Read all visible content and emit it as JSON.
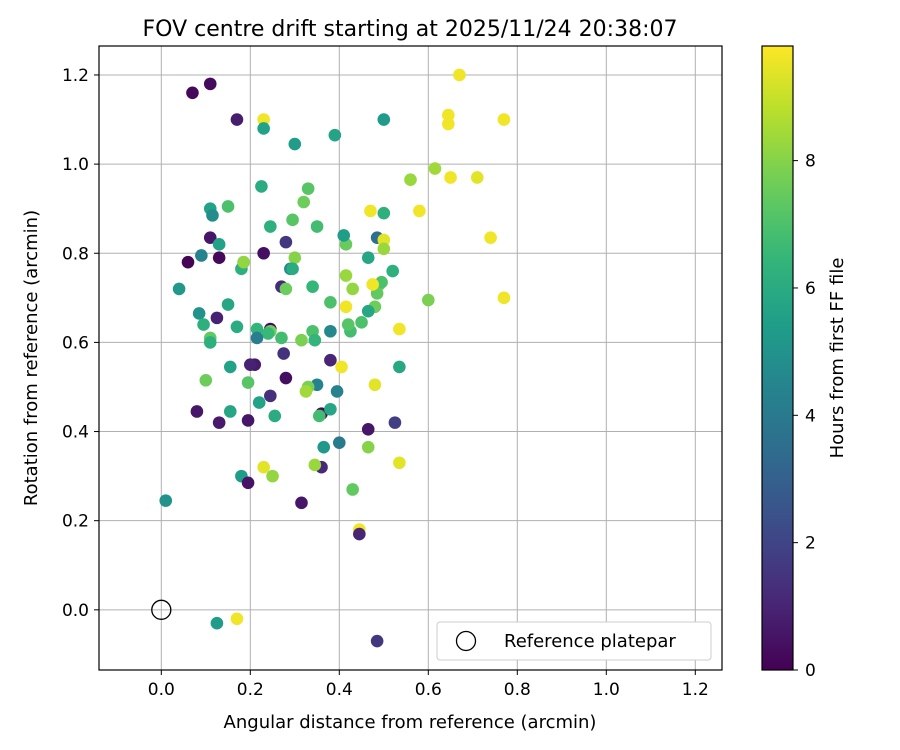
{
  "chart_data": {
    "type": "scatter",
    "title": "FOV centre drift starting at 2025/11/24 20:38:07",
    "xlabel": "Angular distance from reference (arcmin)",
    "ylabel": "Rotation from reference (arcmin)",
    "xlim": [
      -0.14,
      1.26
    ],
    "ylim": [
      -0.135,
      1.265
    ],
    "xticks": [
      "0.0",
      "0.2",
      "0.4",
      "0.6",
      "0.8",
      "1.0",
      "1.2"
    ],
    "yticks": [
      "0.0",
      "0.2",
      "0.4",
      "0.6",
      "0.8",
      "1.0",
      "1.2"
    ],
    "xtick_values": [
      0.0,
      0.2,
      0.4,
      0.6,
      0.8,
      1.0,
      1.2
    ],
    "ytick_values": [
      0.0,
      0.2,
      0.4,
      0.6,
      0.8,
      1.0,
      1.2
    ],
    "grid": true,
    "colorbar": {
      "label": "Hours from first FF file",
      "min": 0,
      "max": 9.8,
      "ticks": [
        "0",
        "2",
        "4",
        "6",
        "8"
      ],
      "tick_values": [
        0,
        2,
        4,
        6,
        8
      ]
    },
    "legend": {
      "label": "Reference platepar",
      "position": "lower-right"
    },
    "reference_point": {
      "x": 0.0,
      "y": 0.0
    },
    "points": [
      {
        "x": 0.07,
        "y": 1.16,
        "h": 0.2
      },
      {
        "x": 0.11,
        "y": 1.18,
        "h": 0.3
      },
      {
        "x": 0.17,
        "y": 1.1,
        "h": 0.8
      },
      {
        "x": 0.23,
        "y": 1.1,
        "h": 9.6
      },
      {
        "x": 0.23,
        "y": 1.08,
        "h": 5.6
      },
      {
        "x": 0.3,
        "y": 1.045,
        "h": 5.4
      },
      {
        "x": 0.39,
        "y": 1.065,
        "h": 5.7
      },
      {
        "x": 0.5,
        "y": 1.1,
        "h": 5.3
      },
      {
        "x": 0.67,
        "y": 1.2,
        "h": 9.6
      },
      {
        "x": 0.645,
        "y": 1.11,
        "h": 9.6
      },
      {
        "x": 0.645,
        "y": 1.09,
        "h": 9.6
      },
      {
        "x": 0.77,
        "y": 1.1,
        "h": 9.6
      },
      {
        "x": 0.56,
        "y": 0.965,
        "h": 8.3
      },
      {
        "x": 0.615,
        "y": 0.99,
        "h": 8.4
      },
      {
        "x": 0.65,
        "y": 0.97,
        "h": 9.6
      },
      {
        "x": 0.71,
        "y": 0.97,
        "h": 9.4
      },
      {
        "x": 0.74,
        "y": 0.835,
        "h": 9.6
      },
      {
        "x": 0.77,
        "y": 0.7,
        "h": 9.6
      },
      {
        "x": 0.58,
        "y": 0.895,
        "h": 9.6
      },
      {
        "x": 0.47,
        "y": 0.895,
        "h": 9.6
      },
      {
        "x": 0.5,
        "y": 0.89,
        "h": 6.2
      },
      {
        "x": 0.485,
        "y": 0.835,
        "h": 3.5
      },
      {
        "x": 0.5,
        "y": 0.83,
        "h": 9.4
      },
      {
        "x": 0.5,
        "y": 0.81,
        "h": 8.3
      },
      {
        "x": 0.52,
        "y": 0.76,
        "h": 6.2
      },
      {
        "x": 0.465,
        "y": 0.79,
        "h": 5.8
      },
      {
        "x": 0.49,
        "y": 0.73,
        "h": 7.6
      },
      {
        "x": 0.495,
        "y": 0.735,
        "h": 7.0
      },
      {
        "x": 0.485,
        "y": 0.71,
        "h": 7.4
      },
      {
        "x": 0.475,
        "y": 0.73,
        "h": 9.6
      },
      {
        "x": 0.48,
        "y": 0.68,
        "h": 7.6
      },
      {
        "x": 0.465,
        "y": 0.67,
        "h": 5.8
      },
      {
        "x": 0.45,
        "y": 0.645,
        "h": 7.0
      },
      {
        "x": 0.425,
        "y": 0.625,
        "h": 6.8
      },
      {
        "x": 0.42,
        "y": 0.64,
        "h": 7.2
      },
      {
        "x": 0.415,
        "y": 0.68,
        "h": 9.6
      },
      {
        "x": 0.43,
        "y": 0.72,
        "h": 8.2
      },
      {
        "x": 0.415,
        "y": 0.75,
        "h": 8.3
      },
      {
        "x": 0.415,
        "y": 0.82,
        "h": 7.5
      },
      {
        "x": 0.41,
        "y": 0.84,
        "h": 5.4
      },
      {
        "x": 0.38,
        "y": 0.69,
        "h": 7.0
      },
      {
        "x": 0.38,
        "y": 0.625,
        "h": 4.6
      },
      {
        "x": 0.405,
        "y": 0.545,
        "h": 9.6
      },
      {
        "x": 0.38,
        "y": 0.56,
        "h": 1.0
      },
      {
        "x": 0.395,
        "y": 0.49,
        "h": 4.3
      },
      {
        "x": 0.35,
        "y": 0.505,
        "h": 4.4
      },
      {
        "x": 0.33,
        "y": 0.5,
        "h": 7.8
      },
      {
        "x": 0.325,
        "y": 0.49,
        "h": 8.4
      },
      {
        "x": 0.36,
        "y": 0.44,
        "h": 0.3
      },
      {
        "x": 0.355,
        "y": 0.435,
        "h": 6.8
      },
      {
        "x": 0.38,
        "y": 0.45,
        "h": 5.8
      },
      {
        "x": 0.365,
        "y": 0.365,
        "h": 5.2
      },
      {
        "x": 0.4,
        "y": 0.375,
        "h": 4.0
      },
      {
        "x": 0.36,
        "y": 0.32,
        "h": 1.1
      },
      {
        "x": 0.345,
        "y": 0.325,
        "h": 8.3
      },
      {
        "x": 0.315,
        "y": 0.24,
        "h": 0.6
      },
      {
        "x": 0.43,
        "y": 0.27,
        "h": 7.4
      },
      {
        "x": 0.445,
        "y": 0.18,
        "h": 9.6
      },
      {
        "x": 0.445,
        "y": 0.17,
        "h": 1.0
      },
      {
        "x": 0.465,
        "y": 0.405,
        "h": 0.6
      },
      {
        "x": 0.465,
        "y": 0.365,
        "h": 8.0
      },
      {
        "x": 0.48,
        "y": 0.505,
        "h": 9.4
      },
      {
        "x": 0.525,
        "y": 0.42,
        "h": 1.8
      },
      {
        "x": 0.535,
        "y": 0.545,
        "h": 5.9
      },
      {
        "x": 0.535,
        "y": 0.33,
        "h": 9.4
      },
      {
        "x": 0.535,
        "y": 0.63,
        "h": 9.6
      },
      {
        "x": 0.6,
        "y": 0.695,
        "h": 7.8
      },
      {
        "x": 0.485,
        "y": -0.07,
        "h": 1.6
      },
      {
        "x": 0.34,
        "y": 0.725,
        "h": 6.5
      },
      {
        "x": 0.34,
        "y": 0.625,
        "h": 7.0
      },
      {
        "x": 0.345,
        "y": 0.605,
        "h": 6.4
      },
      {
        "x": 0.315,
        "y": 0.605,
        "h": 7.8
      },
      {
        "x": 0.35,
        "y": 0.86,
        "h": 6.8
      },
      {
        "x": 0.33,
        "y": 0.945,
        "h": 7.2
      },
      {
        "x": 0.32,
        "y": 0.915,
        "h": 7.6
      },
      {
        "x": 0.295,
        "y": 0.875,
        "h": 7.2
      },
      {
        "x": 0.3,
        "y": 0.79,
        "h": 8.0
      },
      {
        "x": 0.29,
        "y": 0.765,
        "h": 4.6
      },
      {
        "x": 0.295,
        "y": 0.765,
        "h": 6.0
      },
      {
        "x": 0.28,
        "y": 0.825,
        "h": 1.6
      },
      {
        "x": 0.27,
        "y": 0.725,
        "h": 1.2
      },
      {
        "x": 0.28,
        "y": 0.72,
        "h": 7.6
      },
      {
        "x": 0.245,
        "y": 0.86,
        "h": 6.2
      },
      {
        "x": 0.225,
        "y": 0.95,
        "h": 6.0
      },
      {
        "x": 0.23,
        "y": 0.8,
        "h": 0.4
      },
      {
        "x": 0.245,
        "y": 0.63,
        "h": 0.3
      },
      {
        "x": 0.245,
        "y": 0.625,
        "h": 7.6
      },
      {
        "x": 0.24,
        "y": 0.62,
        "h": 6.6
      },
      {
        "x": 0.215,
        "y": 0.63,
        "h": 6.4
      },
      {
        "x": 0.215,
        "y": 0.61,
        "h": 4.2
      },
      {
        "x": 0.27,
        "y": 0.61,
        "h": 6.8
      },
      {
        "x": 0.275,
        "y": 0.575,
        "h": 1.4
      },
      {
        "x": 0.21,
        "y": 0.55,
        "h": 0.7
      },
      {
        "x": 0.2,
        "y": 0.55,
        "h": 0.9
      },
      {
        "x": 0.195,
        "y": 0.51,
        "h": 7.2
      },
      {
        "x": 0.28,
        "y": 0.52,
        "h": 0.4
      },
      {
        "x": 0.245,
        "y": 0.48,
        "h": 1.3
      },
      {
        "x": 0.22,
        "y": 0.465,
        "h": 5.6
      },
      {
        "x": 0.255,
        "y": 0.435,
        "h": 6.0
      },
      {
        "x": 0.195,
        "y": 0.425,
        "h": 0.6
      },
      {
        "x": 0.18,
        "y": 0.3,
        "h": 5.4
      },
      {
        "x": 0.195,
        "y": 0.285,
        "h": 0.5
      },
      {
        "x": 0.25,
        "y": 0.3,
        "h": 8.2
      },
      {
        "x": 0.23,
        "y": 0.32,
        "h": 9.4
      },
      {
        "x": 0.18,
        "y": 0.765,
        "h": 6.2
      },
      {
        "x": 0.185,
        "y": 0.78,
        "h": 6.6
      },
      {
        "x": 0.185,
        "y": 0.78,
        "h": 8.2
      },
      {
        "x": 0.15,
        "y": 0.905,
        "h": 7.0
      },
      {
        "x": 0.11,
        "y": 0.9,
        "h": 5.6
      },
      {
        "x": 0.115,
        "y": 0.885,
        "h": 4.8
      },
      {
        "x": 0.11,
        "y": 0.835,
        "h": 0.6
      },
      {
        "x": 0.13,
        "y": 0.82,
        "h": 5.6
      },
      {
        "x": 0.09,
        "y": 0.795,
        "h": 4.4
      },
      {
        "x": 0.13,
        "y": 0.79,
        "h": 0.2
      },
      {
        "x": 0.06,
        "y": 0.78,
        "h": 0.1
      },
      {
        "x": 0.04,
        "y": 0.72,
        "h": 5.2
      },
      {
        "x": 0.085,
        "y": 0.665,
        "h": 5.0
      },
      {
        "x": 0.15,
        "y": 0.685,
        "h": 5.8
      },
      {
        "x": 0.125,
        "y": 0.655,
        "h": 0.9
      },
      {
        "x": 0.095,
        "y": 0.64,
        "h": 6.2
      },
      {
        "x": 0.17,
        "y": 0.635,
        "h": 6.0
      },
      {
        "x": 0.11,
        "y": 0.61,
        "h": 7.4
      },
      {
        "x": 0.11,
        "y": 0.6,
        "h": 6.2
      },
      {
        "x": 0.155,
        "y": 0.545,
        "h": 5.6
      },
      {
        "x": 0.1,
        "y": 0.515,
        "h": 7.6
      },
      {
        "x": 0.08,
        "y": 0.445,
        "h": 0.6
      },
      {
        "x": 0.155,
        "y": 0.445,
        "h": 5.8
      },
      {
        "x": 0.13,
        "y": 0.42,
        "h": 0.7
      },
      {
        "x": 0.01,
        "y": 0.245,
        "h": 5.0
      },
      {
        "x": 0.125,
        "y": -0.03,
        "h": 5.4
      },
      {
        "x": 0.17,
        "y": -0.02,
        "h": 9.6
      }
    ]
  }
}
